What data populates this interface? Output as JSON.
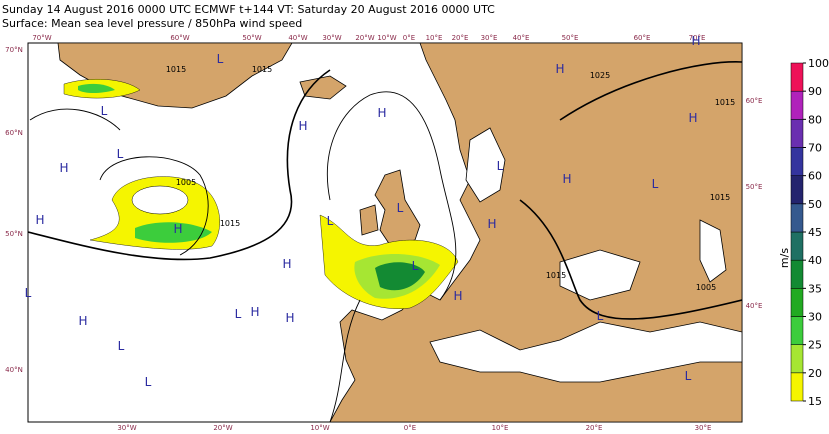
{
  "header": {
    "line1": "Sunday 14 August 2016 0000 UTC  ECMWF  t+144  VT: Saturday 20 August 2016 0000 UTC",
    "line2": "Surface: Mean sea level pressure / 850hPa wind speed"
  },
  "map": {
    "top_labels": [
      "70°W",
      "60°W",
      "50°W",
      "40°W",
      "30°W",
      "20°W",
      "10°W",
      "0°E",
      "10°E",
      "20°E",
      "30°E",
      "40°E",
      "50°E",
      "60°E",
      "70°E"
    ],
    "bottom_labels": [
      "30°W",
      "20°W",
      "10°W",
      "0°E",
      "10°E",
      "20°E",
      "30°E"
    ],
    "left_labels": [
      "70°N",
      "60°N",
      "50°N",
      "40°N"
    ],
    "right_labels": [
      "60°E",
      "50°E",
      "40°E"
    ],
    "pressure_centers": [
      "H",
      "L",
      "L",
      "H",
      "L",
      "H",
      "H",
      "L",
      "H",
      "L",
      "H",
      "H",
      "H",
      "L",
      "H",
      "L",
      "L",
      "H",
      "H",
      "L",
      "H",
      "H",
      "L",
      "L",
      "H",
      "L",
      "L",
      "H",
      "L"
    ],
    "isobar_labels": [
      "1015",
      "1015",
      "1025",
      "1005",
      "1015",
      "1015",
      "1015",
      "1005",
      "1015"
    ],
    "colorbar": {
      "label": "m/s",
      "ticks": [
        15,
        20,
        25,
        30,
        35,
        40,
        45,
        50,
        60,
        70,
        80,
        90,
        100
      ],
      "colors": [
        "#f5f500",
        "#a6e633",
        "#3ccd3c",
        "#22aa22",
        "#138a33",
        "#1f7063",
        "#35598e",
        "#24246e",
        "#34349e",
        "#6a2fb0",
        "#b022bb",
        "#ee1258"
      ]
    }
  }
}
